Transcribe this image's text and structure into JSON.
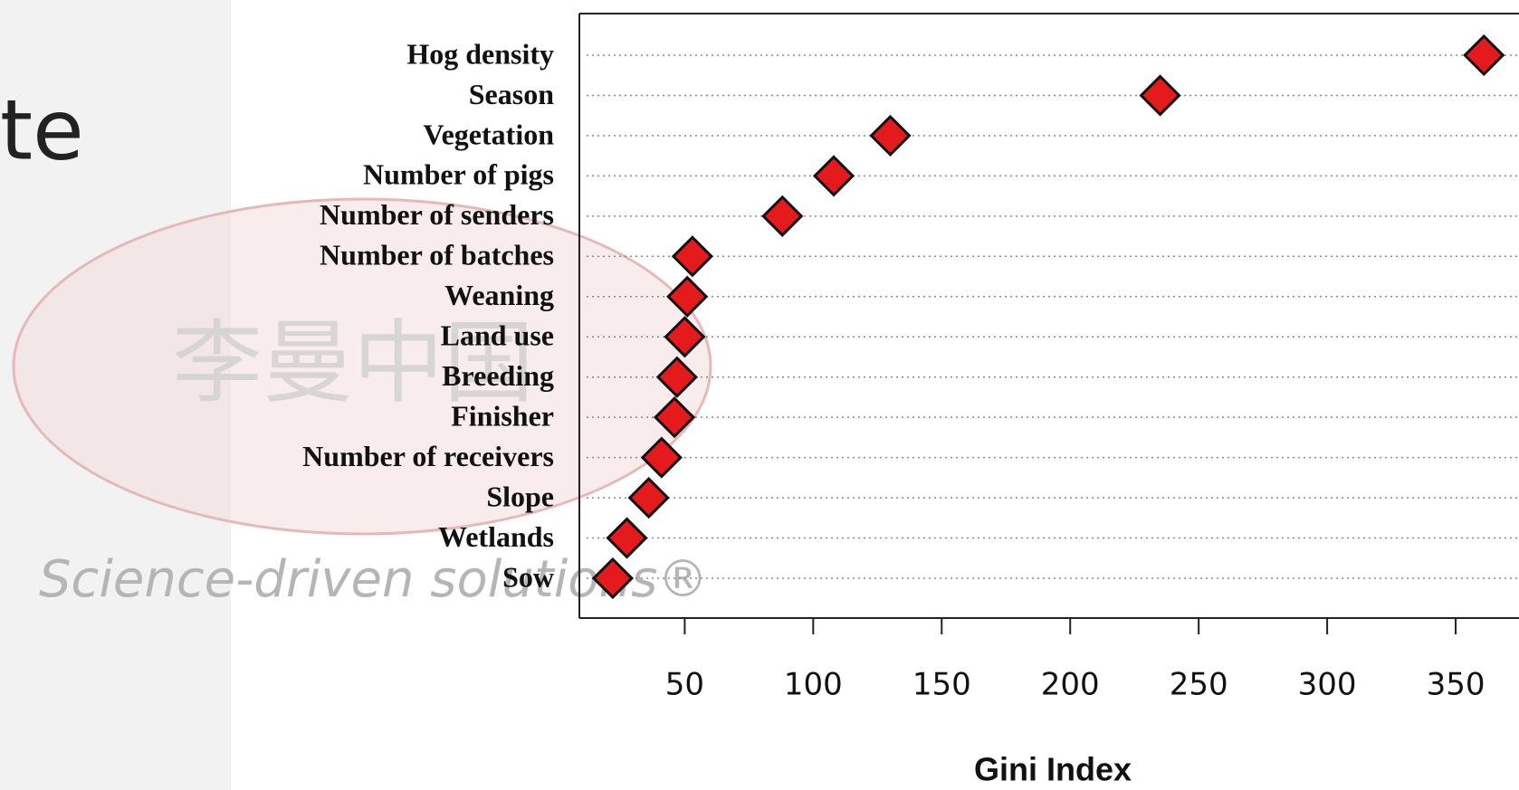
{
  "slide": {
    "title_fragment": "te",
    "watermark_text": "Science-driven solutions®",
    "watermark_chinese": "李曼中国"
  },
  "chart_data": {
    "type": "dot",
    "x_label": "Gini Index",
    "categories": [
      "Hog density",
      "Season",
      "Vegetation",
      "Number of pigs",
      "Number of senders",
      "Number of batches",
      "Weaning",
      "Land use",
      "Breeding",
      "Finisher",
      "Number of receivers",
      "Slope",
      "Wetlands",
      "Sow"
    ],
    "values": [
      361,
      235,
      130,
      108,
      88,
      53,
      51,
      50,
      47,
      46,
      41,
      36,
      27.5,
      22
    ],
    "color": "#e41a1c",
    "xlim": [
      9,
      375
    ],
    "xticks": [
      50,
      100,
      150,
      200,
      250,
      300,
      350
    ],
    "grid": true
  }
}
